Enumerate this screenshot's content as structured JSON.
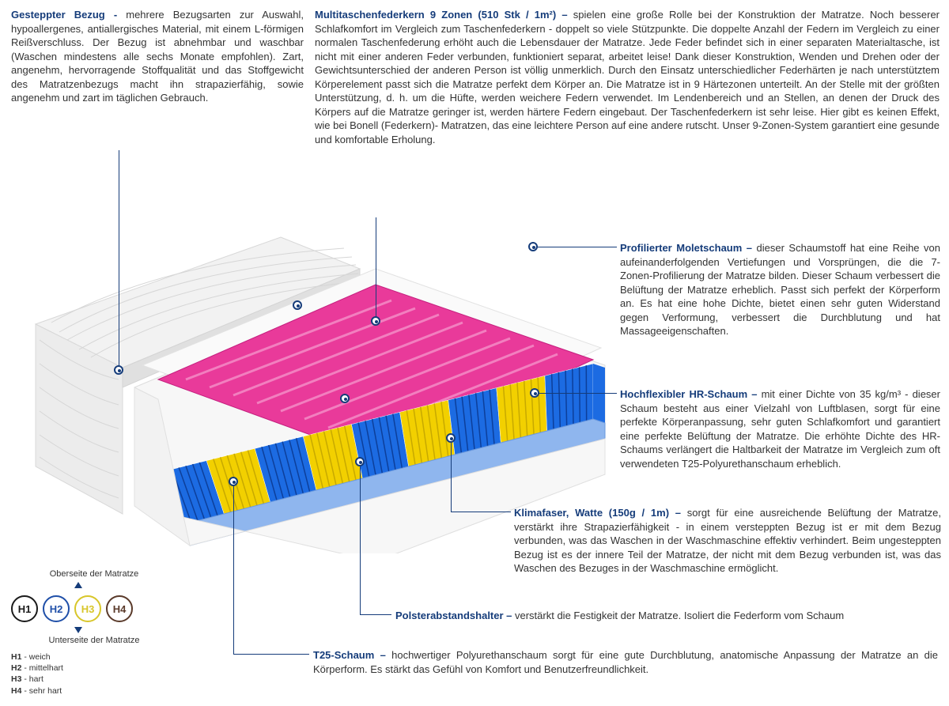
{
  "colors": {
    "title": "#153c7a",
    "text": "#333333",
    "h1": "#1a1a1a",
    "h2": "#1f4fa8",
    "h3": "#d8c62a",
    "h4": "#5a3a2a",
    "pink": "#e93a9a",
    "yellow": "#f2d000",
    "blue": "#1c6be2",
    "blueLight": "#7aa6e8",
    "coverGrey": "#e9e9e9",
    "baseWhite": "#f6f6f6"
  },
  "topLeft": {
    "title": "Gesteppter Bezug - ",
    "body": "mehrere Bezugsarten zur Auswahl, hypoallergenes, antiallergisches Material, mit einem L-förmigen Reißverschluss. Der Bezug ist abnehmbar und waschbar (Waschen mindestens alle sechs Monate empfohlen). Zart, angenehm, hervorragende Stoffqualität und das Stoffgewicht des Matratzenbezugs macht ihn strapazierfähig, sowie angenehm und zart im täglichen Gebrauch."
  },
  "topRight": {
    "title": "Multitaschenfederkern 9 Zonen (510 Stk / 1m²) – ",
    "body": "spielen eine große Rolle bei der Konstruktion der Matratze. Noch besserer Schlafkomfort im Vergleich zum Taschenfederkern - doppelt so viele Stützpunkte. Die doppelte Anzahl der Federn im Vergleich zu einer normalen Taschenfederung erhöht auch die Lebensdauer der Matratze. Jede Feder befindet sich in einer separaten Materialtasche, ist nicht mit einer anderen Feder verbunden, funktioniert separat, arbeitet leise! Dank dieser Konstruktion, Wenden und Drehen oder der Gewichtsunterschied der anderen Person ist völlig unmerklich. Durch den Einsatz unterschiedlicher Federhärten je nach unterstütztem Körperelement passt sich die Matratze perfekt dem Körper an. Die Matratze ist in 9 Härtezonen unterteilt. An der Stelle mit der größten Unterstützung, d. h. um die Hüfte, werden weichere Federn verwendet. Im Lendenbereich und an Stellen, an denen der Druck des Körpers auf die Matratze geringer ist, werden härtere Federn eingebaut. Der Taschenfederkern ist sehr leise. Hier gibt es keinen Effekt, wie bei Bonell (Federkern)- Matratzen, das eine leichtere Person auf eine andere rutscht. Unser 9-Zonen-System garantiert eine gesunde und komfortable Erholung."
  },
  "r1": {
    "title": "Profilierter Moletschaum – ",
    "body": "dieser Schaumstoff hat eine Reihe von aufeinanderfolgenden Vertiefungen und Vorsprüngen, die die 7-Zonen-Profilierung der Matratze bilden. Dieser Schaum verbessert die Belüftung der Matratze erheblich. Passt sich perfekt der Körperform an. Es hat eine hohe Dichte, bietet einen sehr guten Widerstand gegen Verformung, verbessert die Durchblutung und hat Massageeigenschaften."
  },
  "r2": {
    "title": "Hochflexibler HR-Schaum – ",
    "body": "mit einer Dichte von 35 kg/m³ - dieser Schaum besteht aus einer Vielzahl von Luftblasen, sorgt für eine perfekte Körperanpassung, sehr guten Schlafkomfort und garantiert eine perfekte Belüftung der Matratze. Die erhöhte Dichte des HR-Schaums verlängert die Haltbarkeit der Matratze im Vergleich zum oft verwendeten T25-Polyurethanschaum erheblich."
  },
  "r3": {
    "title": "Klimafaser, Watte (150g / 1m) – ",
    "body": "sorgt für eine ausreichende Belüftung der Matratze, verstärkt ihre Strapazierfähigkeit - in einem versteppten Bezug ist er mit dem Bezug verbunden, was das Waschen in der Waschmaschine effektiv verhindert. Beim ungesteppten Bezug ist es der innere Teil der Matratze, der nicht mit dem Bezug verbunden ist, was das Waschen des Bezuges in der Waschmaschine ermöglicht."
  },
  "r4": {
    "title": "Polsterabstandshalter – ",
    "body": "verstärkt die Festigkeit der Matratze. Isoliert die Federform vom Schaum"
  },
  "r5": {
    "title": "T25-Schaum – ",
    "body": "hochwertiger Polyurethanschaum sorgt für eine gute Durchblutung, anatomische Anpassung der Matratze an die Körperform. Es stärkt das Gefühl von Komfort und Benutzerfreundlichkeit."
  },
  "legend": {
    "top": "Oberseite der Matratze",
    "bottom": "Unterseite der Matratze",
    "items": [
      {
        "code": "H1",
        "label": "weich"
      },
      {
        "code": "H2",
        "label": "mittelhart"
      },
      {
        "code": "H3",
        "label": "hart"
      },
      {
        "code": "H4",
        "label": "sehr hart"
      }
    ]
  }
}
